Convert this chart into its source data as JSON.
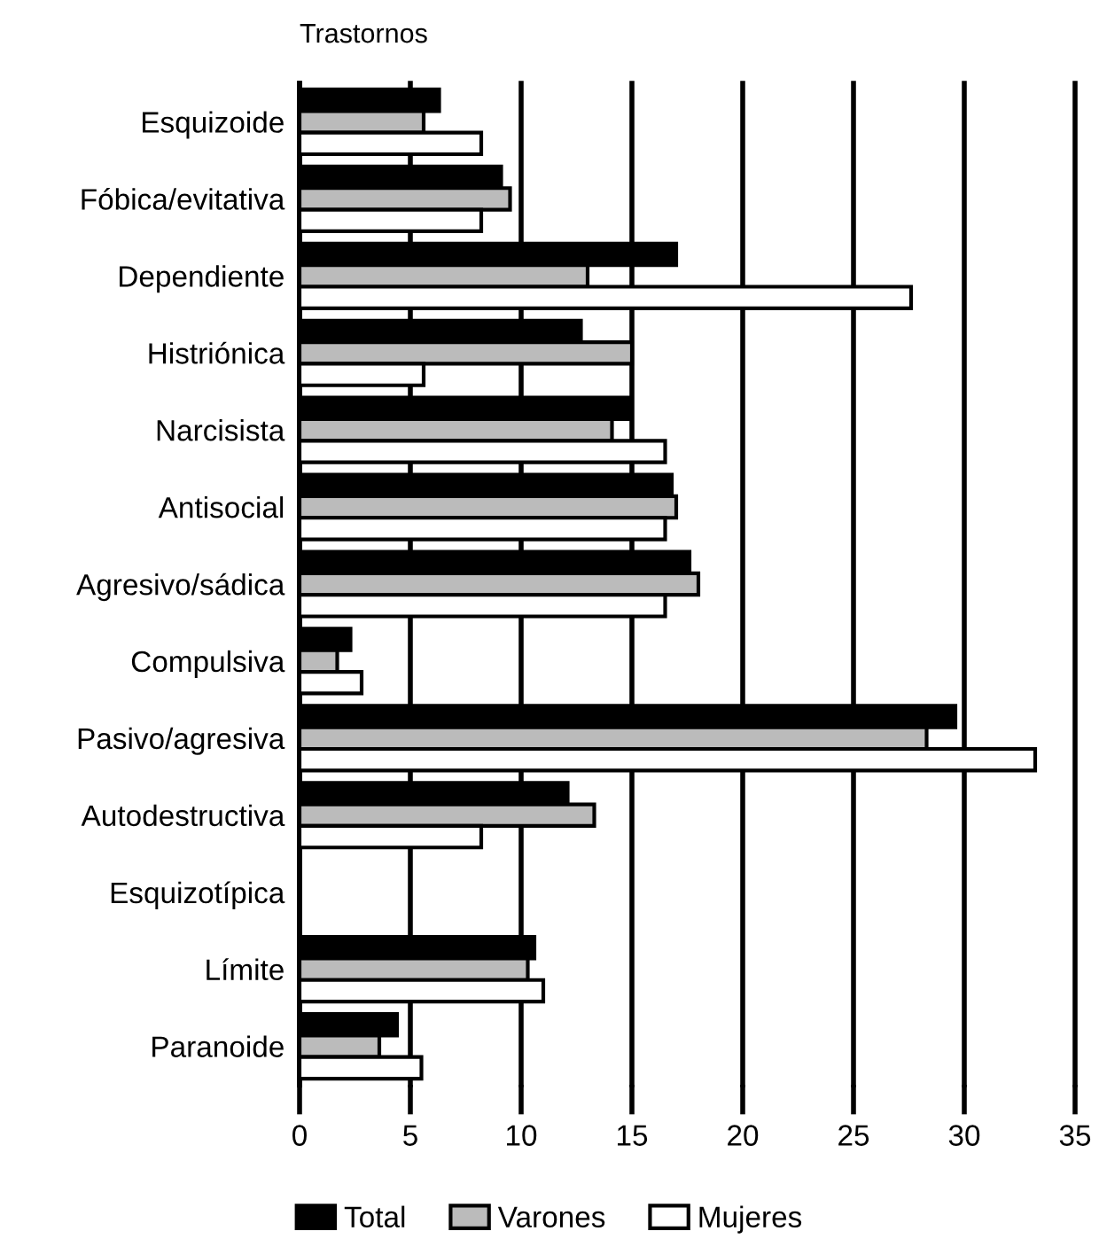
{
  "chart_data": {
    "type": "bar",
    "orientation": "horizontal",
    "ylabel": "Trastornos",
    "categories": [
      "Esquizoide",
      "Fóbica/evitativa",
      "Dependiente",
      "Histriónica",
      "Narcisista",
      "Antisocial",
      "Agresivo/sádica",
      "Compulsiva",
      "Pasivo/agresiva",
      "Autodestructiva",
      "Esquizotípica",
      "Límite",
      "Paranoide"
    ],
    "series": [
      {
        "name": "Total",
        "color": "#000000",
        "values": [
          6.3,
          9.1,
          17.0,
          12.7,
          14.9,
          16.8,
          17.6,
          2.3,
          29.6,
          12.1,
          null,
          10.6,
          4.4
        ]
      },
      {
        "name": "Varones",
        "color": "#bbbbbb",
        "values": [
          5.6,
          9.5,
          13.0,
          15.0,
          14.1,
          17.0,
          18.0,
          1.7,
          28.3,
          13.3,
          null,
          10.3,
          3.6
        ]
      },
      {
        "name": "Mujeres",
        "color": "#ffffff",
        "values": [
          8.2,
          8.2,
          27.6,
          5.6,
          16.5,
          16.5,
          16.5,
          2.8,
          33.2,
          8.2,
          null,
          11.0,
          5.5
        ]
      }
    ],
    "xlim": [
      0,
      35
    ],
    "xticks": [
      0,
      5,
      10,
      15,
      20,
      25,
      30,
      35
    ],
    "grid": "x",
    "legend": "bottom"
  }
}
